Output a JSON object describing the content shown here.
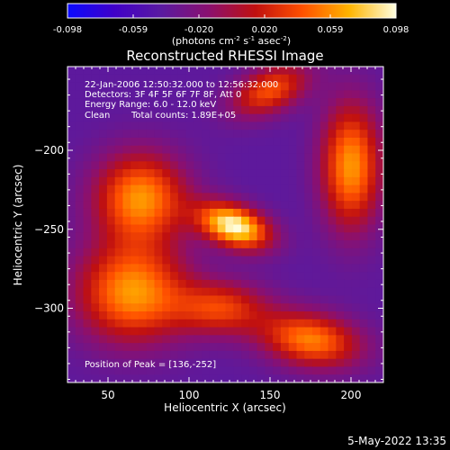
{
  "chart_data": {
    "type": "heatmap",
    "title": "Reconstructed RHESSI Image",
    "xlabel": "Heliocentric X (arcsec)",
    "ylabel": "Heliocentric Y (arcsec)",
    "xlim": [
      25,
      220
    ],
    "ylim": [
      -347,
      -147
    ],
    "xticks": [
      50,
      100,
      150,
      200
    ],
    "yticks": [
      -200,
      -250,
      -300
    ],
    "colorbar": {
      "min": -0.098,
      "max": 0.098,
      "ticks": [
        "-0.098",
        "-0.059",
        "-0.020",
        "0.020",
        "0.059",
        "0.098"
      ],
      "label_parts": [
        "(photons cm",
        "-2",
        " s",
        "-1",
        " asec",
        "-2",
        ")"
      ],
      "stops": [
        "#0a0aff",
        "#4000c8",
        "#5a1aa0",
        "#8a1070",
        "#c01010",
        "#ff5000",
        "#ffb400",
        "#ffffe0"
      ]
    },
    "annotations": {
      "time_range": "22-Jan-2006 12:50:32.000 to 12:56:32.000",
      "detectors": "Detectors: 3F 4F 5F 6F 7F 8F, Att 0",
      "energy": "Energy Range: 6.0 - 12.0 keV",
      "method": "Clean",
      "total_counts": "Total counts: 1.89E+05",
      "peak": "Position of Peak = [136,-252]"
    },
    "sources": [
      {
        "x": 128,
        "y": -248,
        "sx": 16,
        "sy": 9,
        "rot": -20,
        "amp": 0.098
      },
      {
        "x": 70,
        "y": -230,
        "sx": 20,
        "sy": 20,
        "rot": 0,
        "amp": 0.06
      },
      {
        "x": 65,
        "y": -290,
        "sx": 24,
        "sy": 22,
        "rot": 0,
        "amp": 0.062
      },
      {
        "x": 200,
        "y": -210,
        "sx": 13,
        "sy": 28,
        "rot": 0,
        "amp": 0.062
      },
      {
        "x": 175,
        "y": -320,
        "sx": 22,
        "sy": 12,
        "rot": -10,
        "amp": 0.055
      },
      {
        "x": 150,
        "y": -162,
        "sx": 18,
        "sy": 10,
        "rot": 25,
        "amp": 0.04
      },
      {
        "x": 120,
        "y": -300,
        "sx": 20,
        "sy": 12,
        "rot": 0,
        "amp": 0.03
      }
    ],
    "background": -0.04
  },
  "footer": {
    "date": "5-May-2022 13:35"
  }
}
